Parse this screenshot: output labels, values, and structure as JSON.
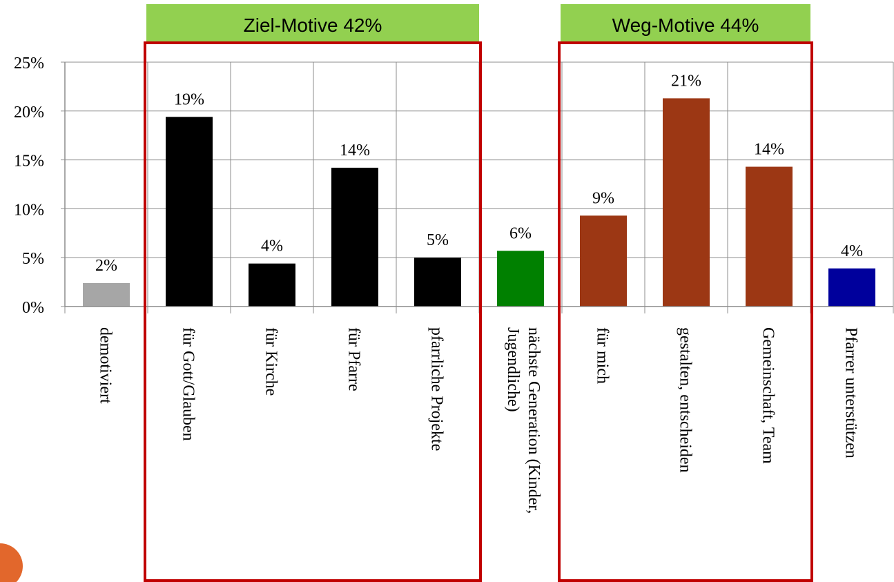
{
  "chart_data": {
    "type": "bar",
    "categories": [
      "demotiviert",
      "für Gott/Glauben",
      "für Kirche",
      "für Pfarre",
      "pfarrliche Projekte",
      "nächste Generation (Kinder, Jugendliche)",
      "für mich",
      "gestalten, entscheiden",
      "Gemeinschaft, Team",
      "Pfarrer unterstützen"
    ],
    "values": [
      2.4,
      19.4,
      4.4,
      14.2,
      5.0,
      5.7,
      9.3,
      21.3,
      14.3,
      3.9
    ],
    "data_labels": [
      "2%",
      "19%",
      "4%",
      "14%",
      "5%",
      "6%",
      "9%",
      "21%",
      "14%",
      "4%"
    ],
    "bar_colors": [
      "#a6a6a6",
      "#000000",
      "#000000",
      "#000000",
      "#000000",
      "#008000",
      "#9c3714",
      "#9c3714",
      "#9c3714",
      "#00009c"
    ],
    "ylim": [
      0,
      25
    ],
    "yticks": [
      {
        "value": 0,
        "label": "0%"
      },
      {
        "value": 5,
        "label": "5%"
      },
      {
        "value": 10,
        "label": "10%"
      },
      {
        "value": 15,
        "label": "15%"
      },
      {
        "value": 20,
        "label": "20%"
      },
      {
        "value": 25,
        "label": "25%"
      }
    ],
    "grid": true,
    "groups": [
      {
        "label": "Ziel-Motive 42%",
        "from": 1,
        "to": 4
      },
      {
        "label": "Weg-Motive 44%",
        "from": 6,
        "to": 8
      }
    ],
    "colors": {
      "group_box": "#c00000",
      "group_header": "#92d050",
      "grid": "#8c8c8c",
      "page_badge": "#e2672c"
    }
  }
}
